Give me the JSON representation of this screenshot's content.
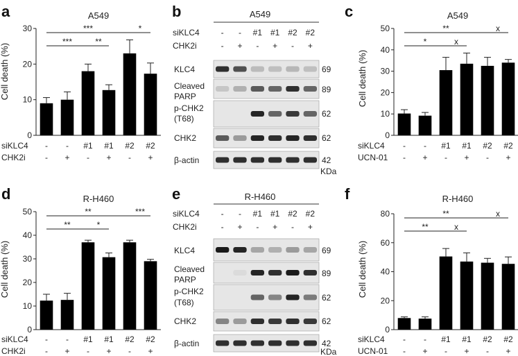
{
  "chart_data": [
    {
      "panel": "a",
      "type": "bar",
      "title": "A549",
      "ylabel": "Cell death (%)",
      "ylim": [
        0,
        30
      ],
      "yticks": [
        0,
        10,
        20,
        30
      ],
      "conditions": [
        {
          "label": "siKLC4",
          "values": [
            "-",
            "-",
            "#1",
            "#1",
            "#2",
            "#2"
          ]
        },
        {
          "label": "CHK2i",
          "values": [
            "-",
            "+",
            "-",
            "+",
            "-",
            "+"
          ]
        }
      ],
      "values": [
        9,
        10,
        18,
        12.7,
        23,
        17.3
      ],
      "errors": [
        1.6,
        2.2,
        2.0,
        1.5,
        3.8,
        3.0
      ],
      "significance": [
        {
          "from": 0,
          "to": 4,
          "label": "***",
          "level": 0
        },
        {
          "from": 4,
          "to": 5,
          "label": "*",
          "level": 0
        },
        {
          "from": 0,
          "to": 2,
          "label": "***",
          "level": 1
        },
        {
          "from": 2,
          "to": 3,
          "label": "**",
          "level": 1
        }
      ]
    },
    {
      "panel": "c",
      "type": "bar",
      "title": "A549",
      "ylabel": "Cell death (%)",
      "ylim": [
        0,
        50
      ],
      "yticks": [
        0,
        10,
        20,
        30,
        40,
        50
      ],
      "conditions": [
        {
          "label": "siKLC4",
          "values": [
            "-",
            "-",
            "#1",
            "#1",
            "#2",
            "#2"
          ]
        },
        {
          "label": "UCN-01",
          "values": [
            "-",
            "+",
            "-",
            "+",
            "-",
            "+"
          ]
        }
      ],
      "values": [
        10.2,
        9.2,
        30.5,
        33.5,
        32.5,
        34
      ],
      "errors": [
        1.8,
        1.5,
        6.0,
        5.0,
        4.0,
        1.5
      ],
      "significance": [
        {
          "from": 0,
          "to": 4,
          "label": "**",
          "level": 0
        },
        {
          "from": 4,
          "to": 5,
          "label": "x",
          "level": 0
        },
        {
          "from": 0,
          "to": 2,
          "label": "*",
          "level": 1
        },
        {
          "from": 2,
          "to": 3,
          "label": "x",
          "level": 1
        }
      ]
    },
    {
      "panel": "d",
      "type": "bar",
      "title": "R-H460",
      "ylabel": "Cell death (%)",
      "ylim": [
        0,
        50
      ],
      "yticks": [
        0,
        10,
        20,
        30,
        40,
        50
      ],
      "conditions": [
        {
          "label": "siKLC4",
          "values": [
            "-",
            "-",
            "#1",
            "#1",
            "#2",
            "#2"
          ]
        },
        {
          "label": "CHK2i",
          "values": [
            "-",
            "+",
            "-",
            "+",
            "-",
            "+"
          ]
        }
      ],
      "values": [
        12.3,
        12.6,
        37,
        30.7,
        37,
        29
      ],
      "errors": [
        2.7,
        2.8,
        0.9,
        1.8,
        0.9,
        0.8
      ],
      "significance": [
        {
          "from": 0,
          "to": 4,
          "label": "**",
          "level": 0
        },
        {
          "from": 4,
          "to": 5,
          "label": "***",
          "level": 0
        },
        {
          "from": 0,
          "to": 2,
          "label": "**",
          "level": 1
        },
        {
          "from": 2,
          "to": 3,
          "label": "*",
          "level": 1
        }
      ]
    },
    {
      "panel": "f",
      "type": "bar",
      "title": "R-H460",
      "ylabel": "Cell death (%)",
      "ylim": [
        0,
        80
      ],
      "yticks": [
        0,
        20,
        40,
        60,
        80
      ],
      "conditions": [
        {
          "label": "siKLC4",
          "values": [
            "-",
            "-",
            "#1",
            "#1",
            "#2",
            "#2"
          ]
        },
        {
          "label": "UCN-01",
          "values": [
            "-",
            "+",
            "-",
            "+",
            "-",
            "+"
          ]
        }
      ],
      "values": [
        8,
        7.6,
        50.5,
        47,
        46.2,
        45.4
      ],
      "errors": [
        0.8,
        1.2,
        5.5,
        6.0,
        3.0,
        4.8
      ],
      "significance": [
        {
          "from": 0,
          "to": 4,
          "label": "**",
          "level": 0
        },
        {
          "from": 4,
          "to": 5,
          "label": "x",
          "level": 0
        },
        {
          "from": 0,
          "to": 2,
          "label": "**",
          "level": 1
        },
        {
          "from": 2,
          "to": 3,
          "label": "x",
          "level": 1
        }
      ]
    }
  ],
  "blots": [
    {
      "panel": "b",
      "title": "A549",
      "conditions": [
        {
          "label": "siKLC4",
          "values": [
            "-",
            "-",
            "#1",
            "#1",
            "#2",
            "#2"
          ]
        },
        {
          "label": "CHK2i",
          "values": [
            "-",
            "+",
            "-",
            "+",
            "-",
            "+"
          ]
        }
      ],
      "bands": [
        {
          "name": "KLC4",
          "size": "69",
          "intensity": [
            0.85,
            0.7,
            0.2,
            0.18,
            0.22,
            0.18
          ]
        },
        {
          "name": "Cleaved PARP",
          "size": "89",
          "intensity": [
            0.15,
            0.25,
            0.65,
            0.6,
            0.85,
            0.6
          ]
        },
        {
          "name": "p-CHK2 (T68)",
          "size": "62",
          "intensity": [
            0.0,
            0.0,
            0.9,
            0.6,
            0.8,
            0.6
          ]
        },
        {
          "name": "CHK2",
          "size": "62",
          "intensity": [
            0.65,
            0.35,
            0.9,
            0.85,
            0.9,
            0.85
          ]
        },
        {
          "name": "β-actin",
          "size": "42",
          "intensity": [
            0.85,
            0.85,
            0.85,
            0.85,
            0.85,
            0.85
          ]
        }
      ],
      "unit": "KDa"
    },
    {
      "panel": "e",
      "title": "R-H460",
      "conditions": [
        {
          "label": "siKLC4",
          "values": [
            "-",
            "-",
            "#1",
            "#1",
            "#2",
            "#2"
          ]
        },
        {
          "label": "CHK2i",
          "values": [
            "-",
            "+",
            "-",
            "+",
            "-",
            "+"
          ]
        }
      ],
      "bands": [
        {
          "name": "KLC4",
          "size": "69",
          "intensity": [
            0.95,
            0.9,
            0.3,
            0.25,
            0.35,
            0.3
          ]
        },
        {
          "name": "Cleaved PARP",
          "size": "89",
          "intensity": [
            0.0,
            0.05,
            0.9,
            0.85,
            0.95,
            0.85
          ]
        },
        {
          "name": "p-CHK2 (T68)",
          "size": "62",
          "intensity": [
            0.0,
            0.0,
            0.6,
            0.45,
            0.9,
            0.5
          ]
        },
        {
          "name": "CHK2",
          "size": "62",
          "intensity": [
            0.45,
            0.35,
            0.85,
            0.8,
            0.85,
            0.8
          ]
        },
        {
          "name": "β-actin",
          "size": "42",
          "intensity": [
            0.85,
            0.85,
            0.85,
            0.85,
            0.85,
            0.85
          ]
        }
      ],
      "unit": "KDa"
    }
  ]
}
